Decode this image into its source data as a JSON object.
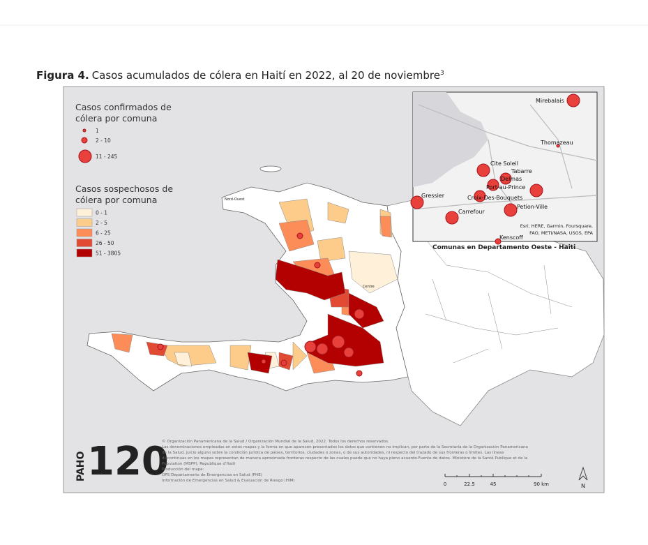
{
  "figure": {
    "label": "Figura 4.",
    "caption": "Casos acumulados de cólera en Haití en 2022, al 20 de noviembre",
    "footnote_ref": "3"
  },
  "legend": {
    "confirmed": {
      "title": [
        "Casos confirmados de",
        "cólera por comuna"
      ],
      "items": [
        "1",
        "2 - 10",
        "11 - 245"
      ]
    },
    "suspected": {
      "title": [
        "Casos sospechosos de",
        "cólera por comuna"
      ],
      "items": [
        "0 - 1",
        "2 - 5",
        "6 - 25",
        "26 - 50",
        "51 - 3805"
      ],
      "colors": [
        "#fef0d9",
        "#fdcc8a",
        "#fc8d59",
        "#e34a33",
        "#b30000"
      ]
    }
  },
  "map": {
    "labels": [
      "Nord-Ouest",
      "Centre"
    ]
  },
  "inset": {
    "places": [
      "Mirebalais",
      "Thomazeau",
      "Cite Soleil",
      "Tabarre",
      "Delmas",
      "Port-au-Prince",
      "Croix-Des-Bouquets",
      "Gressier",
      "Carrefour",
      "Petion-Ville",
      "Kenscoff"
    ],
    "attribution": [
      "Esri, HERE, Garmin, Foursquare,",
      "FAO, METI/NASA, USGS, EPA"
    ],
    "caption": "Comunas en Departamento Oeste - Haiti"
  },
  "logo": {
    "name": "PAHO",
    "number": "120"
  },
  "notes": [
    "©  Organización Panamericana de la Salud / Organización Mundial de la Salud, 2022. Todos los derechos reservados.",
    "Las denominaciones empleadas en estos mapas y la forma en que aparecen presentados los datos que contienen no implican, por parte de la Secretaría de la Organización Panamericana",
    "de la Salud, juicio alguno sobre la condición jurídica de países, territorios, ciudades o zonas, o de sus autoridades, ni respecto del trazado de sus fronteras o límites. Las líneas",
    "discontinuas en los mapas representan de manera aproximada fronteras respecto de las cuales puede que no haya pleno acuerdo.Fuente de datos- Ministère de la Santé Publique et de la",
    "Population (MSPP), Republique d'Haiti",
    "Producción del mapa:",
    "OPS Departamento de Emergencias en Salud (PHE)",
    "Información de Emergencias en Salud & Evaluación de Riesgo (HIM)"
  ],
  "scale": {
    "labels": [
      "0",
      "22.5",
      "45",
      "90 km"
    ],
    "north": "N"
  }
}
